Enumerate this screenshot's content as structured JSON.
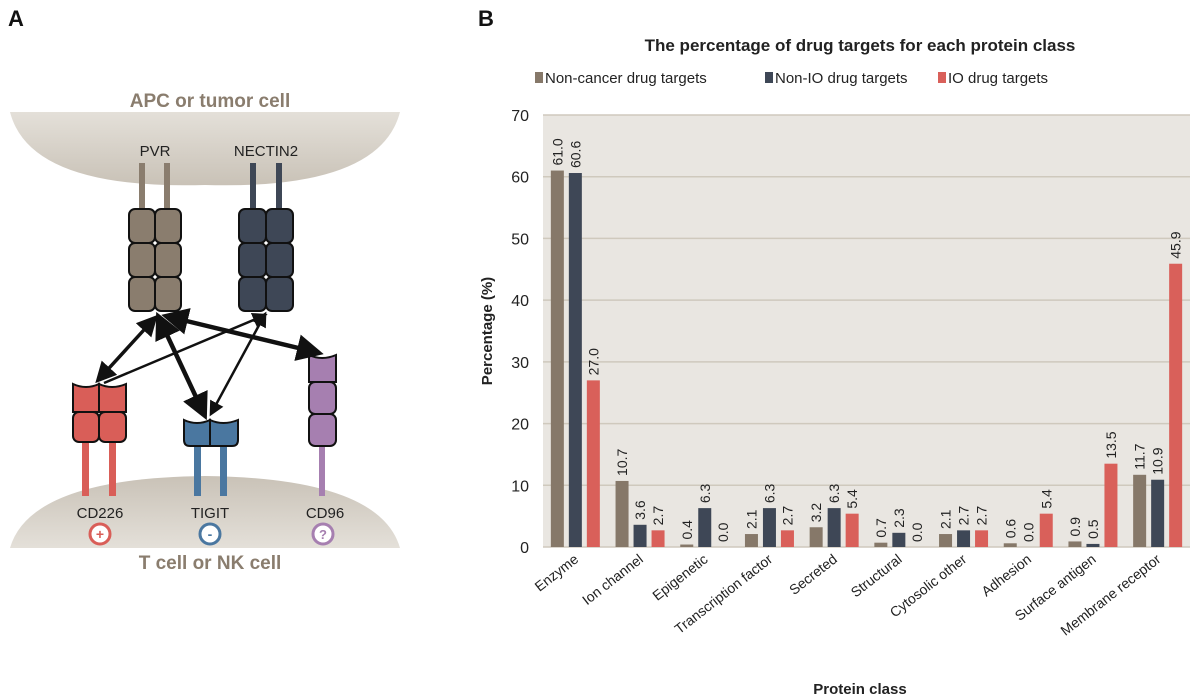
{
  "panel_a": {
    "label": "A",
    "top_cell": "APC or tumor cell",
    "bottom_cell": "T cell or NK cell",
    "ligands": [
      {
        "name": "PVR",
        "color": "#8a7d6e"
      },
      {
        "name": "NECTIN2",
        "color": "#3e4756"
      }
    ],
    "receptors": [
      {
        "name": "CD226",
        "color": "#d95e58",
        "effect": "+"
      },
      {
        "name": "TIGIT",
        "color": "#4a77a0",
        "effect": "-"
      },
      {
        "name": "CD96",
        "color": "#a67fb0",
        "effect": "?"
      }
    ]
  },
  "panel_b": {
    "label": "B"
  },
  "chart_data": {
    "type": "bar",
    "title": "The percentage of drug targets for each protein class",
    "xlabel": "Protein class",
    "ylabel": "Percentage (%)",
    "ylim": [
      0,
      70
    ],
    "yticks": [
      "0",
      "10",
      "20",
      "30",
      "40",
      "50",
      "60",
      "70"
    ],
    "grid": true,
    "legend_position": "top",
    "categories": [
      "Enzyme",
      "Ion channel",
      "Epigenetic",
      "Transcription factor",
      "Secreted",
      "Structural",
      "Cytosolic other",
      "Adhesion",
      "Surface antigen",
      "Membrane receptor"
    ],
    "series": [
      {
        "name": "Non-cancer drug targets",
        "color": "#867869",
        "values": [
          61.0,
          10.7,
          0.4,
          2.1,
          3.2,
          0.7,
          2.1,
          0.6,
          0.9,
          11.7
        ]
      },
      {
        "name": "Non-IO drug targets",
        "color": "#3e4756",
        "values": [
          60.6,
          3.6,
          6.3,
          6.3,
          6.3,
          2.3,
          2.7,
          0.0,
          0.5,
          10.9
        ]
      },
      {
        "name": "IO drug targets",
        "color": "#d9605a",
        "values": [
          27.0,
          2.7,
          0.0,
          2.7,
          5.4,
          0.0,
          2.7,
          5.4,
          13.5,
          45.9
        ]
      }
    ]
  }
}
